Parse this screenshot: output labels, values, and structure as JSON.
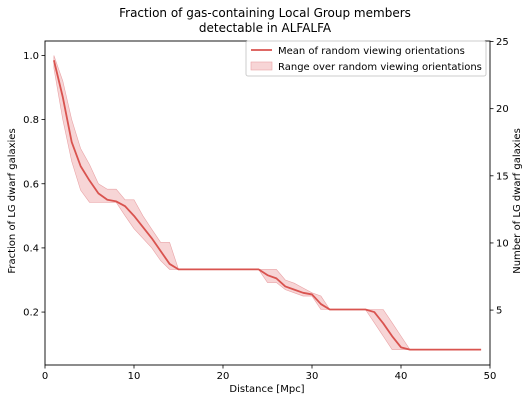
{
  "chart_data": {
    "type": "line",
    "title_line1": "Fraction of gas-containing Local Group members",
    "title_line2": "detectable in ALFALFA",
    "xlabel": "Distance [Mpc]",
    "ylabel": "Fraction of LG dwarf galaxies",
    "ylabel_right": "Number of LG dwarf galaxies",
    "xlim": [
      0,
      50
    ],
    "ylim": [
      0.035,
      1.045
    ],
    "ylim_right": [
      0.91,
      25.04
    ],
    "xticks": [
      0,
      10,
      20,
      30,
      40,
      50
    ],
    "xtick_labels": [
      "0",
      "10",
      "20",
      "30",
      "40",
      "50"
    ],
    "yticks": [
      0.2,
      0.4,
      0.6,
      0.8,
      1.0
    ],
    "ytick_labels": [
      "0.2",
      "0.4",
      "0.6",
      "0.8",
      "1.0"
    ],
    "yticks_right": [
      5,
      10,
      15,
      20,
      25
    ],
    "ytick_labels_right": [
      "5",
      "10",
      "15",
      "20",
      "25"
    ],
    "legend_location": "upper right",
    "series": [
      {
        "name": "Mean of random viewing orientations",
        "kind": "line",
        "x": [
          1,
          2,
          3,
          4,
          5,
          6,
          7,
          8,
          9,
          10,
          11,
          12,
          13,
          14,
          15,
          16,
          17,
          18,
          19,
          20,
          21,
          22,
          23,
          24,
          25,
          26,
          27,
          28,
          29,
          30,
          31,
          32,
          33,
          34,
          35,
          36,
          37,
          38,
          39,
          40,
          41,
          42,
          43,
          44,
          45,
          46,
          47,
          48,
          49
        ],
        "y": [
          0.985,
          0.87,
          0.73,
          0.655,
          0.61,
          0.57,
          0.55,
          0.545,
          0.53,
          0.5,
          0.465,
          0.43,
          0.39,
          0.35,
          0.333,
          0.333,
          0.333,
          0.333,
          0.333,
          0.333,
          0.333,
          0.333,
          0.333,
          0.333,
          0.315,
          0.305,
          0.28,
          0.27,
          0.26,
          0.255,
          0.225,
          0.208,
          0.208,
          0.208,
          0.208,
          0.208,
          0.2,
          0.165,
          0.125,
          0.09,
          0.083,
          0.083,
          0.083,
          0.083,
          0.083,
          0.083,
          0.083,
          0.083,
          0.083
        ],
        "color": "#d9534f"
      },
      {
        "name": "Range over random viewing orientations",
        "kind": "band",
        "x": [
          1,
          2,
          3,
          4,
          5,
          6,
          7,
          8,
          9,
          10,
          11,
          12,
          13,
          14,
          15,
          16,
          17,
          18,
          19,
          20,
          21,
          22,
          23,
          24,
          25,
          26,
          27,
          28,
          29,
          30,
          31,
          32,
          33,
          34,
          35,
          36,
          37,
          38,
          39,
          40,
          41,
          42,
          43,
          44,
          45,
          46,
          47,
          48,
          49
        ],
        "y_low": [
          0.96,
          0.8,
          0.67,
          0.58,
          0.542,
          0.542,
          0.542,
          0.542,
          0.5,
          0.46,
          0.43,
          0.4,
          0.36,
          0.333,
          0.333,
          0.333,
          0.333,
          0.333,
          0.333,
          0.333,
          0.333,
          0.333,
          0.333,
          0.333,
          0.292,
          0.292,
          0.27,
          0.26,
          0.25,
          0.25,
          0.208,
          0.208,
          0.208,
          0.208,
          0.208,
          0.208,
          0.167,
          0.125,
          0.083,
          0.083,
          0.083,
          0.083,
          0.083,
          0.083,
          0.083,
          0.083,
          0.083,
          0.083,
          0.083
        ],
        "y_high": [
          1.0,
          0.92,
          0.8,
          0.71,
          0.66,
          0.6,
          0.583,
          0.583,
          0.55,
          0.55,
          0.5,
          0.458,
          0.417,
          0.417,
          0.333,
          0.333,
          0.333,
          0.333,
          0.333,
          0.333,
          0.333,
          0.333,
          0.333,
          0.333,
          0.333,
          0.333,
          0.3,
          0.29,
          0.275,
          0.26,
          0.25,
          0.208,
          0.208,
          0.208,
          0.208,
          0.208,
          0.208,
          0.208,
          0.167,
          0.125,
          0.083,
          0.083,
          0.083,
          0.083,
          0.083,
          0.083,
          0.083,
          0.083,
          0.083
        ],
        "color": "#f4c7c8"
      }
    ]
  }
}
